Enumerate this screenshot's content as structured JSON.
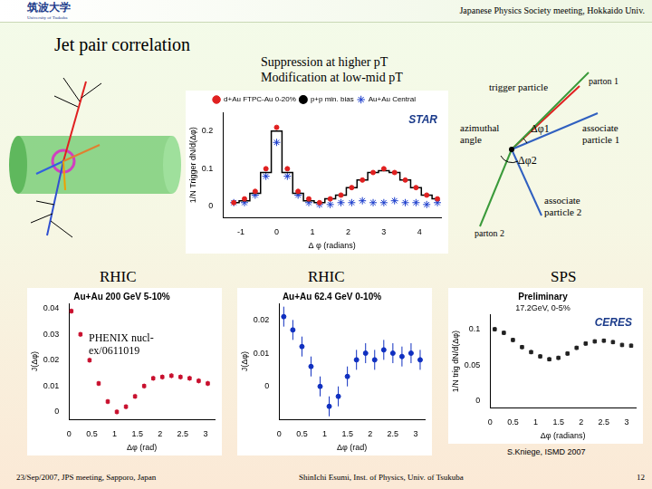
{
  "header": {
    "logo": "筑波大学",
    "logo_sub": "University of Tsukuba",
    "meeting": "Japanese Physics Society meeting, Hokkaido Univ."
  },
  "title": "Jet pair correlation",
  "notes": [
    "Suppression at higher pT",
    "Modification at low-mid pT"
  ],
  "diagram": {
    "trigger": "trigger particle",
    "parton1": "parton 1",
    "angle": "azimuthal angle",
    "dphi1": "Δφ1",
    "dphi2": "Δφ2",
    "assoc1": "associate particle 1",
    "assoc2": "associate particle 2",
    "parton2": "parton 2"
  },
  "sections": [
    "RHIC",
    "RHIC",
    "SPS"
  ],
  "refs": [
    "PHENIX nucl-ex/0611019",
    "S.Kniege, ISMD 2007"
  ],
  "footer": {
    "left": "23/Sep/2007, JPS meeting, Sapporo, Japan",
    "center": "ShinIchi Esumi, Inst. of Physics, Univ. of Tsukuba",
    "right": "12"
  },
  "chart_data": [
    {
      "type": "scatter",
      "x_label": "Δ φ (radians)",
      "y_label": "1/N Trigger dN/d(Δφ)",
      "annotations": [
        "STAR"
      ],
      "legend": "top",
      "xlim": [
        -1.5,
        4.6
      ],
      "xticks": [
        -1,
        0,
        1,
        2,
        3,
        4
      ],
      "ylim": [
        -0.03,
        0.25
      ],
      "yticks": [
        0,
        0.1,
        0.2
      ],
      "grid": false,
      "x": [
        -1.2,
        -0.9,
        -0.6,
        -0.3,
        0,
        0.3,
        0.6,
        0.9,
        1.2,
        1.5,
        1.8,
        2.1,
        2.4,
        2.7,
        3.0,
        3.3,
        3.6,
        3.9,
        4.2,
        4.5
      ],
      "series": [
        {
          "name": "d+Au FTPC-Au 0-20%",
          "color": "#e02020",
          "marker": "circle",
          "values": [
            0.01,
            0.02,
            0.04,
            0.1,
            0.21,
            0.1,
            0.04,
            0.02,
            0.01,
            0.02,
            0.03,
            0.05,
            0.07,
            0.09,
            0.1,
            0.09,
            0.07,
            0.05,
            0.03,
            0.02
          ]
        },
        {
          "name": "p+p min. bias",
          "color": "#000000",
          "type": "line",
          "marker": "none",
          "line_style": "solid",
          "values": [
            0.01,
            0.015,
            0.035,
            0.09,
            0.2,
            0.09,
            0.035,
            0.015,
            0.01,
            0.02,
            0.03,
            0.05,
            0.07,
            0.09,
            0.095,
            0.09,
            0.07,
            0.05,
            0.03,
            0.02
          ]
        },
        {
          "name": "Au+Au Central",
          "color": "#1a3ccc",
          "marker": "star",
          "values": [
            0.01,
            0.01,
            0.03,
            0.08,
            0.17,
            0.08,
            0.03,
            0.01,
            0.005,
            0.005,
            0.01,
            0.01,
            0.015,
            0.01,
            0.01,
            0.015,
            0.01,
            0.01,
            0.005,
            0.01
          ]
        }
      ]
    },
    {
      "type": "scatter",
      "title": "Au+Au 200 GeV 5-10%",
      "x_label": "Δφ (rad)",
      "y_label": "J(Δφ)",
      "xlim": [
        0,
        3.2
      ],
      "xticks": [
        0,
        0.5,
        1,
        1.5,
        2,
        2.5,
        3
      ],
      "ylim": [
        -0.003,
        0.042
      ],
      "yticks": [
        0,
        0.01,
        0.02,
        0.03,
        0.04
      ],
      "grid": false,
      "x": [
        0.05,
        0.25,
        0.45,
        0.65,
        0.85,
        1.05,
        1.25,
        1.45,
        1.65,
        1.85,
        2.05,
        2.25,
        2.45,
        2.65,
        2.85,
        3.05
      ],
      "series": [
        {
          "name": "Au+Au 200 GeV 5-10%",
          "color": "#c8102e",
          "marker": "square",
          "values": [
            0.039,
            0.03,
            0.02,
            0.011,
            0.004,
            0.0,
            0.002,
            0.006,
            0.01,
            0.013,
            0.0135,
            0.014,
            0.0135,
            0.013,
            0.012,
            0.011
          ],
          "errors": [
            0.001,
            0.001,
            0.001,
            0.001,
            0.001,
            0.001,
            0.001,
            0.001,
            0.001,
            0.001,
            0.001,
            0.001,
            0.001,
            0.001,
            0.001,
            0.001
          ]
        }
      ]
    },
    {
      "type": "scatter",
      "title": "Au+Au 62.4 GeV 0-10%",
      "x_label": "Δφ (rad)",
      "y_label": "J(Δφ)",
      "xlim": [
        0,
        3.2
      ],
      "xticks": [
        0,
        0.5,
        1,
        1.5,
        2,
        2.5,
        3
      ],
      "ylim": [
        -0.01,
        0.025
      ],
      "yticks": [
        0,
        0.01,
        0.02
      ],
      "grid": false,
      "x": [
        0.1,
        0.3,
        0.5,
        0.7,
        0.9,
        1.1,
        1.3,
        1.5,
        1.7,
        1.9,
        2.1,
        2.3,
        2.5,
        2.7,
        2.9,
        3.1
      ],
      "series": [
        {
          "name": "Au+Au 62.4 GeV 0-10%",
          "color": "#1030c0",
          "marker": "circle",
          "values": [
            0.021,
            0.017,
            0.012,
            0.006,
            0.0,
            -0.006,
            -0.003,
            0.003,
            0.008,
            0.01,
            0.008,
            0.011,
            0.01,
            0.009,
            0.01,
            0.008
          ],
          "errors": [
            0.003,
            0.003,
            0.003,
            0.003,
            0.003,
            0.003,
            0.003,
            0.003,
            0.003,
            0.003,
            0.003,
            0.003,
            0.003,
            0.003,
            0.003,
            0.003
          ]
        }
      ]
    },
    {
      "type": "scatter",
      "title": "Preliminary",
      "subtitle": "17.2GeV, 0-5%",
      "x_label": "Δφ (radians)",
      "y_label": "1/N trig dN/d(Δφ)",
      "annotations": [
        "CERES"
      ],
      "xlim": [
        0,
        3.2
      ],
      "xticks": [
        0,
        0.5,
        1,
        1.5,
        2,
        2.5,
        3
      ],
      "ylim": [
        -0.01,
        0.12
      ],
      "yticks": [
        0,
        0.05,
        0.1
      ],
      "grid": false,
      "x": [
        0.1,
        0.3,
        0.5,
        0.7,
        0.9,
        1.1,
        1.3,
        1.5,
        1.7,
        1.9,
        2.1,
        2.3,
        2.5,
        2.7,
        2.9,
        3.1
      ],
      "series": [
        {
          "name": "17.2GeV, 0-5%",
          "color": "#222222",
          "marker": "square",
          "values": [
            0.1,
            0.095,
            0.085,
            0.075,
            0.068,
            0.062,
            0.058,
            0.06,
            0.066,
            0.074,
            0.08,
            0.083,
            0.084,
            0.082,
            0.078,
            0.077
          ],
          "errors": [
            0.003,
            0.003,
            0.003,
            0.003,
            0.003,
            0.003,
            0.003,
            0.003,
            0.003,
            0.003,
            0.003,
            0.003,
            0.003,
            0.003,
            0.003,
            0.003
          ]
        }
      ]
    }
  ]
}
